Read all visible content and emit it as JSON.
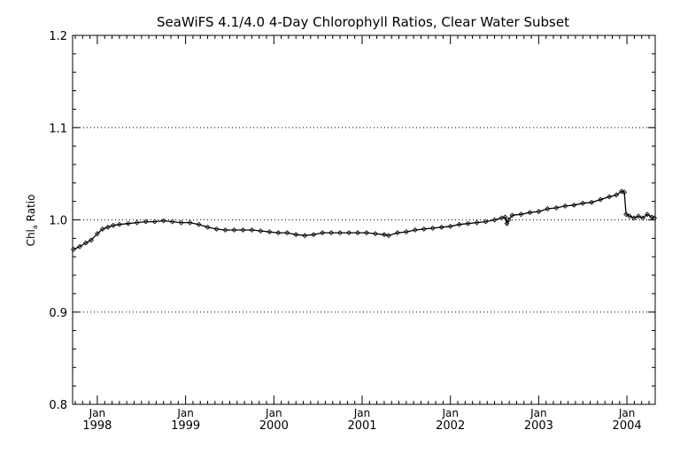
{
  "chart_data": {
    "type": "line",
    "title": "SeaWiFS 4.1/4.0 4-Day Chlorophyll Ratios, Clear Water Subset",
    "ylabel": {
      "main": "Chl",
      "sub": "a",
      "rest": " Ratio"
    },
    "xlabel": "",
    "xlim": [
      1997.72,
      2004.32
    ],
    "ylim": [
      0.8,
      1.2
    ],
    "yticks": [
      "0.8",
      "0.9",
      "1.0",
      "1.1",
      "1.2"
    ],
    "ygrid": [
      0.9,
      1.0,
      1.1
    ],
    "xticks": [
      {
        "month": "Jan",
        "year": "1998",
        "x": 1998.0
      },
      {
        "month": "Jan",
        "year": "1999",
        "x": 1999.0
      },
      {
        "month": "Jan",
        "year": "2000",
        "x": 2000.0
      },
      {
        "month": "Jan",
        "year": "2001",
        "x": 2001.0
      },
      {
        "month": "Jan",
        "year": "2002",
        "x": 2002.0
      },
      {
        "month": "Jan",
        "year": "2003",
        "x": 2003.0
      },
      {
        "month": "Jan",
        "year": "2004",
        "x": 2004.0
      }
    ],
    "marker": "diamond",
    "series": [
      {
        "points": [
          [
            1997.73,
            0.968
          ],
          [
            1997.8,
            0.971
          ],
          [
            1997.87,
            0.975
          ],
          [
            1997.93,
            0.978
          ],
          [
            1998.0,
            0.985
          ],
          [
            1998.06,
            0.99
          ],
          [
            1998.12,
            0.992
          ],
          [
            1998.18,
            0.994
          ],
          [
            1998.25,
            0.995
          ],
          [
            1998.35,
            0.996
          ],
          [
            1998.45,
            0.997
          ],
          [
            1998.55,
            0.998
          ],
          [
            1998.65,
            0.998
          ],
          [
            1998.75,
            0.999
          ],
          [
            1998.85,
            0.998
          ],
          [
            1998.95,
            0.997
          ],
          [
            1999.05,
            0.997
          ],
          [
            1999.15,
            0.995
          ],
          [
            1999.25,
            0.992
          ],
          [
            1999.35,
            0.99
          ],
          [
            1999.45,
            0.989
          ],
          [
            1999.55,
            0.989
          ],
          [
            1999.65,
            0.989
          ],
          [
            1999.75,
            0.989
          ],
          [
            1999.85,
            0.988
          ],
          [
            1999.95,
            0.987
          ],
          [
            2000.05,
            0.986
          ],
          [
            2000.15,
            0.986
          ],
          [
            2000.25,
            0.984
          ],
          [
            2000.35,
            0.983
          ],
          [
            2000.45,
            0.984
          ],
          [
            2000.55,
            0.986
          ],
          [
            2000.65,
            0.986
          ],
          [
            2000.75,
            0.986
          ],
          [
            2000.85,
            0.986
          ],
          [
            2000.95,
            0.986
          ],
          [
            2001.05,
            0.986
          ],
          [
            2001.15,
            0.985
          ],
          [
            2001.25,
            0.984
          ],
          [
            2001.3,
            0.983
          ],
          [
            2001.4,
            0.986
          ],
          [
            2001.5,
            0.987
          ],
          [
            2001.6,
            0.989
          ],
          [
            2001.7,
            0.99
          ],
          [
            2001.8,
            0.991
          ],
          [
            2001.9,
            0.992
          ],
          [
            2002.0,
            0.993
          ],
          [
            2002.1,
            0.995
          ],
          [
            2002.2,
            0.996
          ],
          [
            2002.3,
            0.997
          ],
          [
            2002.4,
            0.998
          ],
          [
            2002.5,
            1.0
          ],
          [
            2002.58,
            1.002
          ],
          [
            2002.62,
            1.003
          ],
          [
            2002.64,
            0.996
          ],
          [
            2002.66,
            1.0
          ],
          [
            2002.7,
            1.005
          ],
          [
            2002.8,
            1.006
          ],
          [
            2002.9,
            1.008
          ],
          [
            2003.0,
            1.009
          ],
          [
            2003.1,
            1.012
          ],
          [
            2003.2,
            1.013
          ],
          [
            2003.3,
            1.015
          ],
          [
            2003.4,
            1.016
          ],
          [
            2003.5,
            1.018
          ],
          [
            2003.6,
            1.019
          ],
          [
            2003.7,
            1.022
          ],
          [
            2003.8,
            1.025
          ],
          [
            2003.88,
            1.027
          ],
          [
            2003.94,
            1.031
          ],
          [
            2003.97,
            1.03
          ],
          [
            2003.99,
            1.006
          ],
          [
            2004.03,
            1.004
          ],
          [
            2004.08,
            1.002
          ],
          [
            2004.13,
            1.004
          ],
          [
            2004.18,
            1.002
          ],
          [
            2004.23,
            1.006
          ],
          [
            2004.28,
            1.003
          ],
          [
            2004.31,
            1.002
          ]
        ]
      }
    ]
  }
}
